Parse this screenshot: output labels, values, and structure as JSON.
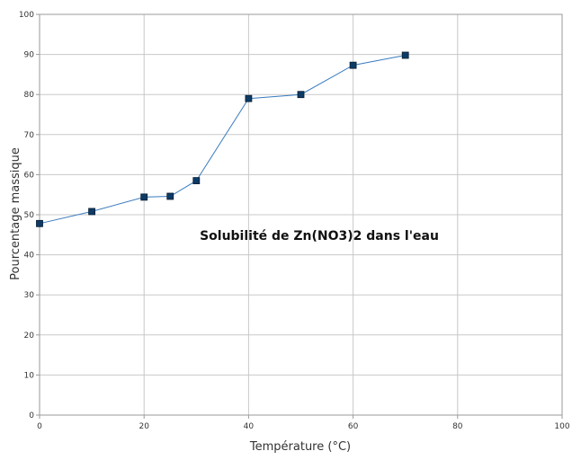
{
  "chart_data": {
    "type": "line",
    "title": "Solubilité de Zn(NO3)2 dans l'eau",
    "xlabel": "Température (°C)",
    "ylabel": "Pourcentage massique",
    "xlim": [
      0,
      100
    ],
    "ylim": [
      0,
      100
    ],
    "x_ticks": [
      "0",
      "20",
      "40",
      "60",
      "80",
      "100"
    ],
    "y_ticks": [
      "0",
      "10",
      "20",
      "30",
      "40",
      "50",
      "60",
      "70",
      "80",
      "90",
      "100"
    ],
    "grid": true,
    "series": [
      {
        "x": [
          0,
          10,
          20,
          25,
          30,
          40,
          50,
          60,
          70
        ],
        "y": [
          47.8,
          50.8,
          54.4,
          54.6,
          58.5,
          79,
          80,
          87.3,
          89.8
        ]
      }
    ],
    "colors": {
      "line": "#3a7bbf",
      "marker": "#0d3b66",
      "grid": "#c8c8c8",
      "axis": "#9a9a9a"
    }
  }
}
